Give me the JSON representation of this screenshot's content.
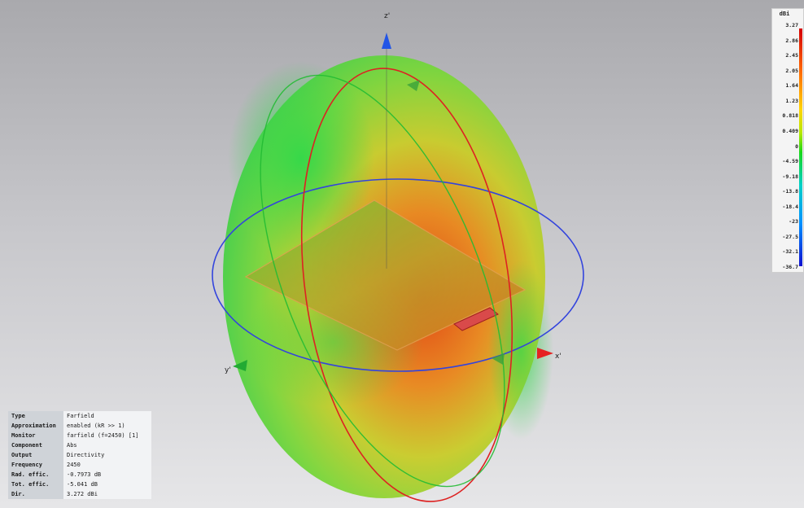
{
  "viewport": {
    "axes": {
      "x_label": "x'",
      "y_label": "y'",
      "z_label": "z'"
    },
    "colors": {
      "z_axis": "#2255e6",
      "x_axis": "#e62222",
      "y_axis": "#22aa33",
      "phi_ring": "#3344dd",
      "theta_ring_red": "#dd2222",
      "theta_ring_green": "#22bb33"
    }
  },
  "colorbar": {
    "unit": "dBi",
    "ticks": [
      "3.27",
      "2.86",
      "2.45",
      "2.05",
      "1.64",
      "1.23",
      "0.818",
      "0.409",
      "0",
      "-4.59",
      "-9.18",
      "-13.8",
      "-18.4",
      "-23",
      "-27.5",
      "-32.1",
      "-36.7"
    ]
  },
  "info": [
    {
      "key": "Type",
      "value": "Farfield"
    },
    {
      "key": "Approximation",
      "value": "enabled (kR >> 1)"
    },
    {
      "key": "Monitor",
      "value": "farfield (f=2450) [1]"
    },
    {
      "key": "Component",
      "value": "Abs"
    },
    {
      "key": "Output",
      "value": "Directivity"
    },
    {
      "key": "Frequency",
      "value": "2450"
    },
    {
      "key": "Rad. effic.",
      "value": "-0.7973 dB"
    },
    {
      "key": "Tot. effic.",
      "value": "-5.041 dB"
    },
    {
      "key": "Dir.",
      "value": "3.272 dBi"
    }
  ]
}
